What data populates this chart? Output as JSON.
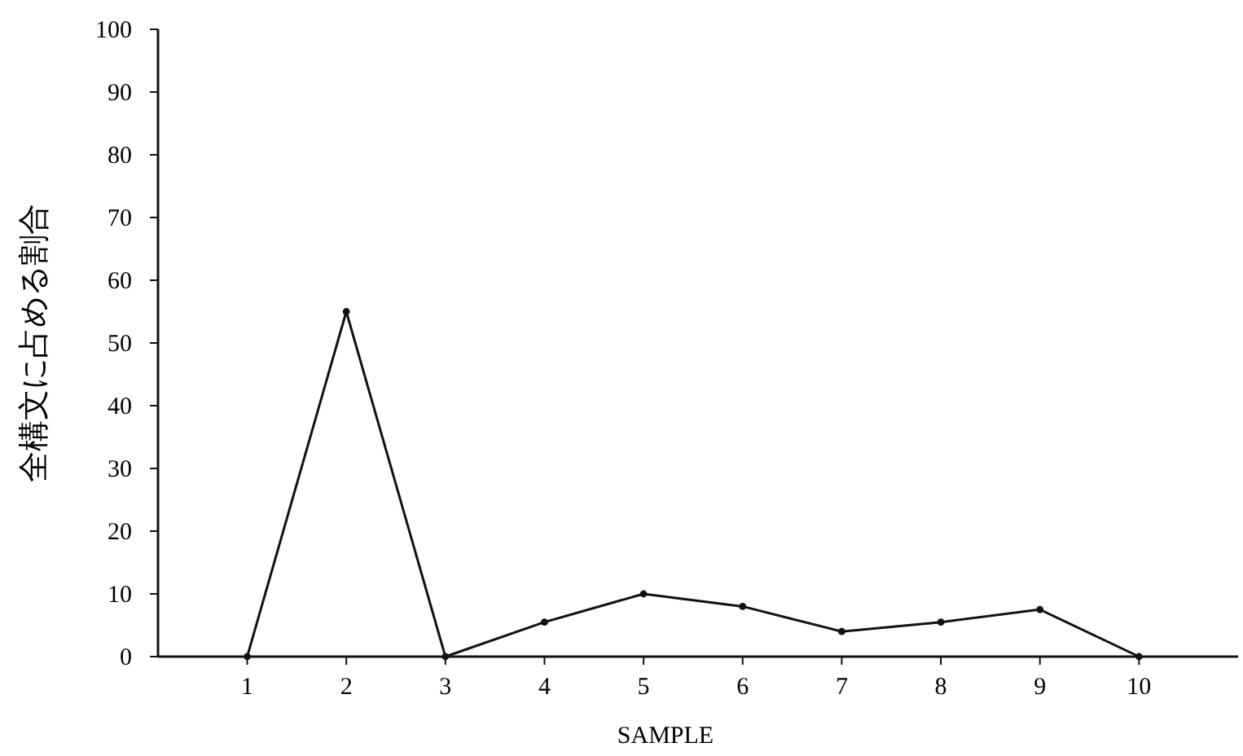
{
  "chart_data": {
    "type": "line",
    "xlabel": "SAMPLE",
    "ylabel": "全構文に占める割合",
    "x": [
      1,
      2,
      3,
      4,
      5,
      6,
      7,
      8,
      9,
      10
    ],
    "series": [
      {
        "color": "#111111",
        "values": [
          0,
          55,
          0,
          5.5,
          10,
          8,
          4,
          5.5,
          7.5,
          0
        ]
      }
    ],
    "xlim": [
      0.1,
      11
    ],
    "xticks": [
      1,
      2,
      3,
      4,
      5,
      6,
      7,
      8,
      9,
      10
    ],
    "ylim": [
      0,
      100
    ],
    "yticks": [
      0,
      10,
      20,
      30,
      40,
      50,
      60,
      70,
      80,
      90,
      100
    ],
    "marker": "circle",
    "line_style": "solid"
  }
}
